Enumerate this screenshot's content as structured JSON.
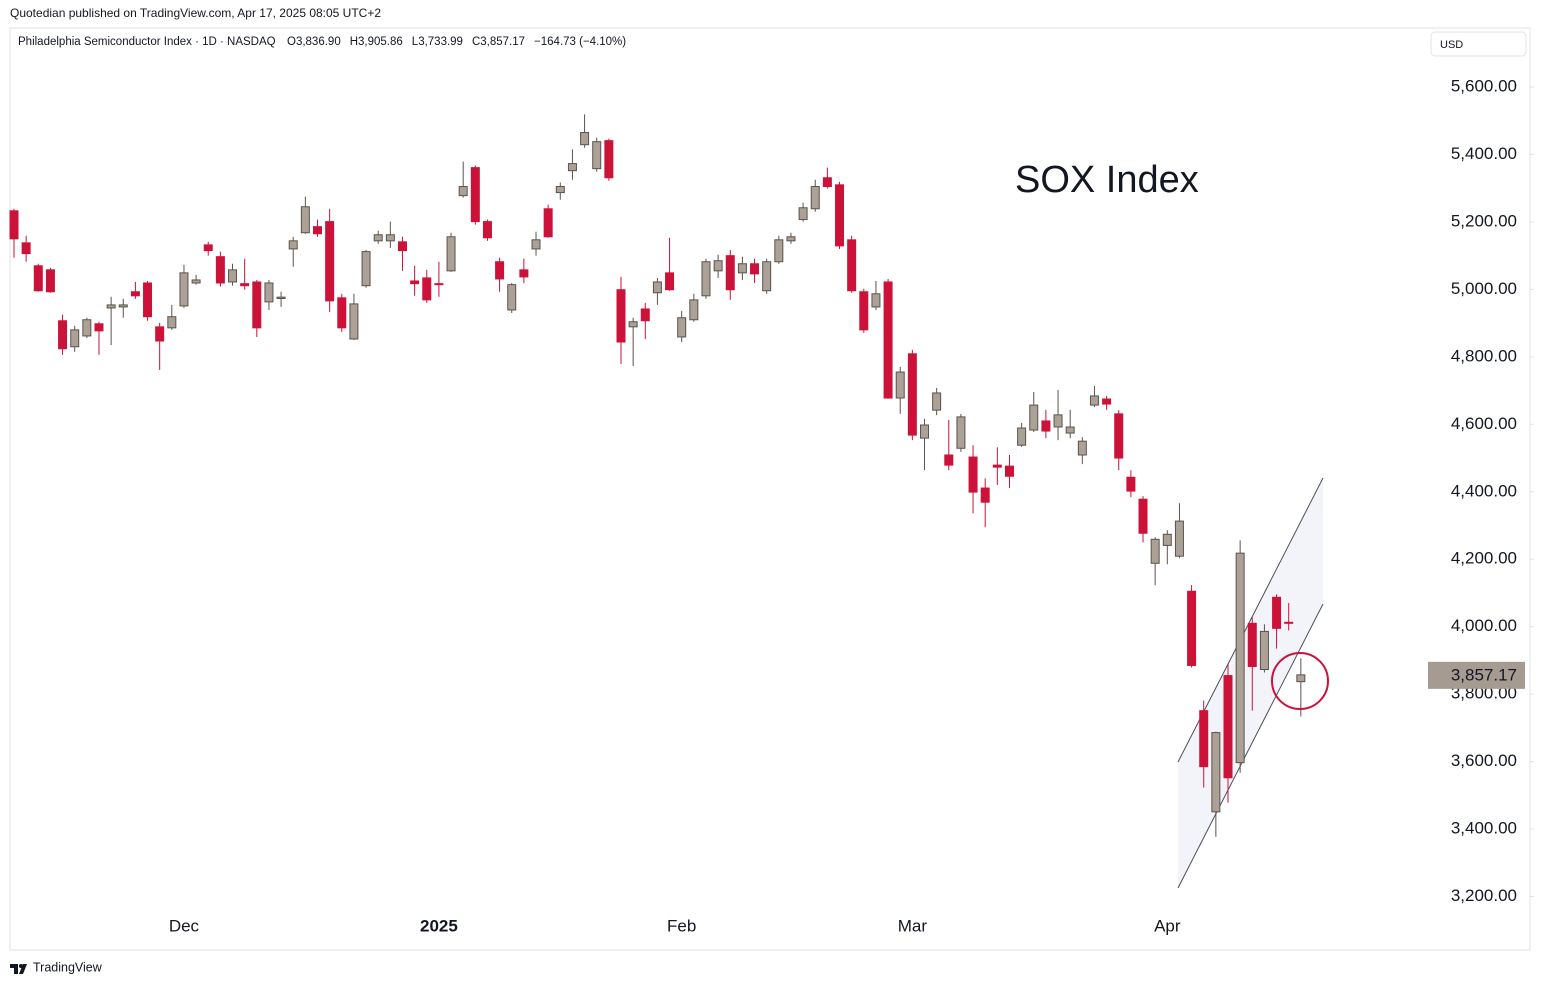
{
  "publisher": "Quotedian published on TradingView.com, Apr 17, 2025 08:05 UTC+2",
  "brand": "TradingView",
  "currency": "USD",
  "chart_data": {
    "type": "candlestick",
    "title": "Philadelphia Semiconductor Index · 1D · NASDAQ",
    "legend_values": [
      "O3,836.90",
      "H3,905.86",
      "L3,733.99",
      "C3,857.17",
      "−164.73 (−4.10%)"
    ],
    "annotation": "SOX Index",
    "last_price_label": "3,857.17",
    "up_color": "#aca196",
    "down_color": "#cc1239",
    "categories": [
      null,
      null,
      null,
      null,
      null,
      null,
      null,
      null,
      null,
      null,
      null,
      null,
      null,
      null,
      "Dec",
      null,
      null,
      null,
      null,
      null,
      null,
      null,
      null,
      null,
      null,
      null,
      null,
      null,
      null,
      null,
      null,
      null,
      null,
      null,
      null,
      "2025",
      null,
      null,
      null,
      null,
      null,
      null,
      null,
      null,
      null,
      null,
      null,
      null,
      null,
      null,
      null,
      null,
      null,
      null,
      null,
      "Feb",
      null,
      null,
      null,
      null,
      null,
      null,
      null,
      null,
      null,
      null,
      null,
      null,
      null,
      null,
      null,
      null,
      null,
      null,
      "Mar",
      null,
      null,
      null,
      null,
      null,
      null,
      null,
      null,
      null,
      null,
      null,
      null,
      null,
      null,
      null,
      null,
      null,
      null,
      null,
      null,
      "Apr",
      null,
      null,
      null,
      null,
      null,
      null,
      null,
      null,
      null,
      null,
      null
    ],
    "series": [
      {
        "name": "SOX",
        "open": [
          5233,
          5138,
          5070,
          5058,
          4907,
          4830,
          4862,
          4898,
          4945,
          4948,
          4993,
          5019,
          4889,
          4886,
          4951,
          5019,
          5132,
          5097,
          5022,
          5017,
          5022,
          4963,
          4973,
          5120,
          5168,
          5186,
          5201,
          4975,
          4853,
          5011,
          5144,
          5144,
          5141,
          5025,
          5034,
          5017,
          5055,
          5278,
          5361,
          5201,
          5082,
          4939,
          5058,
          5120,
          5239,
          5287,
          5352,
          5429,
          5358,
          5441,
          4999,
          4889,
          4942,
          4990,
          5049,
          4859,
          4910,
          4981,
          5055,
          5100,
          5049,
          5076,
          4996,
          5082,
          5144,
          5207,
          5239,
          5331,
          5310,
          5147,
          4993,
          4948,
          5022,
          4678,
          4809,
          4559,
          4642,
          4509,
          4529,
          4503,
          4411,
          4479,
          4476,
          4538,
          4583,
          4610,
          4592,
          4574,
          4509,
          4657,
          4675,
          4631,
          4443,
          4378,
          4188,
          4241,
          4209,
          4105,
          3751,
          3451,
          3855,
          3597,
          4010,
          3873,
          4087,
          4013,
          3836.9
        ],
        "high": [
          5239,
          5159,
          5076,
          5064,
          4925,
          4892,
          4916,
          4904,
          4978,
          4972,
          5022,
          5025,
          4901,
          4954,
          5073,
          5043,
          5141,
          5112,
          5076,
          5091,
          5028,
          5028,
          4993,
          5156,
          5275,
          5207,
          5239,
          4987,
          4987,
          5117,
          5174,
          5201,
          5156,
          5070,
          5058,
          5082,
          5168,
          5379,
          5367,
          5207,
          5094,
          5019,
          5091,
          5171,
          5251,
          5317,
          5415,
          5519,
          5450,
          5447,
          5037,
          4916,
          4960,
          5034,
          5153,
          4936,
          4987,
          5091,
          5103,
          5117,
          5097,
          5091,
          5091,
          5159,
          5168,
          5257,
          5325,
          5361,
          5319,
          5159,
          5002,
          5025,
          5031,
          4770,
          4821,
          4616,
          4708,
          4613,
          4631,
          4538,
          4440,
          4532,
          4509,
          4604,
          4696,
          4643,
          4702,
          4643,
          4562,
          4714,
          4684,
          4642,
          4464,
          4387,
          4265,
          4286,
          4366,
          4123,
          3781,
          3689,
          3891,
          4256,
          4028,
          4007,
          4096,
          4070,
          3905.86
        ],
        "low": [
          5094,
          5082,
          4993,
          4990,
          4806,
          4815,
          4856,
          4806,
          4835,
          4916,
          4972,
          4907,
          4761,
          4880,
          4945,
          5014,
          5100,
          5008,
          5011,
          4999,
          4859,
          4939,
          4948,
          5067,
          5165,
          5156,
          4933,
          4874,
          4850,
          5005,
          5135,
          5123,
          5055,
          4981,
          4960,
          4978,
          5052,
          5272,
          5192,
          5144,
          4993,
          4930,
          5019,
          5100,
          5153,
          5266,
          5325,
          5420,
          5349,
          5322,
          4779,
          4773,
          4853,
          4954,
          4996,
          4844,
          4904,
          4972,
          5034,
          4969,
          5028,
          5019,
          4987,
          5076,
          5135,
          5201,
          5230,
          5299,
          5120,
          4990,
          4871,
          4939,
          4675,
          4631,
          4553,
          4464,
          4627,
          4464,
          4518,
          4336,
          4295,
          4420,
          4411,
          4533,
          4577,
          4559,
          4553,
          4559,
          4482,
          4651,
          4643,
          4464,
          4384,
          4250,
          4123,
          4185,
          4203,
          3879,
          3523,
          3377,
          3478,
          3567,
          3751,
          3864,
          3935,
          3989,
          3733.99
        ],
        "close": [
          5150,
          5106,
          4996,
          4993,
          4824,
          4880,
          4910,
          4877,
          4954,
          4954,
          4981,
          4919,
          4847,
          4919,
          5049,
          5028,
          5115,
          5019,
          5058,
          5011,
          4886,
          5019,
          4977,
          5144,
          5245,
          5165,
          4966,
          4886,
          4957,
          5112,
          5162,
          5162,
          5115,
          5017,
          4969,
          5014,
          5156,
          5305,
          5201,
          5153,
          5031,
          5014,
          5037,
          5147,
          5156,
          5305,
          5373,
          5465,
          5438,
          5331,
          4844,
          4904,
          4907,
          5022,
          4999,
          4916,
          4969,
          5082,
          5085,
          4999,
          5076,
          5046,
          5082,
          5147,
          5156,
          5242,
          5305,
          5305,
          5129,
          4996,
          4880,
          4987,
          4678,
          4755,
          4568,
          4598,
          4693,
          4479,
          4622,
          4399,
          4369,
          4473,
          4446,
          4589,
          4657,
          4580,
          4628,
          4592,
          4550,
          4684,
          4660,
          4500,
          4402,
          4277,
          4259,
          4274,
          4313,
          3885,
          3585,
          3686,
          3552,
          4218,
          3882,
          3986,
          3995,
          4010,
          3857.17
        ]
      }
    ],
    "ylim": [
      3160,
      5775
    ],
    "yticks": [
      {
        "value": 3200,
        "label": "3,200.00"
      },
      {
        "value": 3400,
        "label": "3,400.00"
      },
      {
        "value": 3600,
        "label": "3,600.00"
      },
      {
        "value": 3800,
        "label": "3,800.00"
      },
      {
        "value": 4000,
        "label": "4,000.00"
      },
      {
        "value": 4200,
        "label": "4,200.00"
      },
      {
        "value": 4400,
        "label": "4,400.00"
      },
      {
        "value": 4600,
        "label": "4,600.00"
      },
      {
        "value": 4800,
        "label": "4,800.00"
      },
      {
        "value": 5000,
        "label": "5,000.00"
      },
      {
        "value": 5200,
        "label": "5,200.00"
      },
      {
        "value": 5400,
        "label": "5,400.00"
      },
      {
        "value": 5600,
        "label": "5,600.00"
      }
    ]
  }
}
